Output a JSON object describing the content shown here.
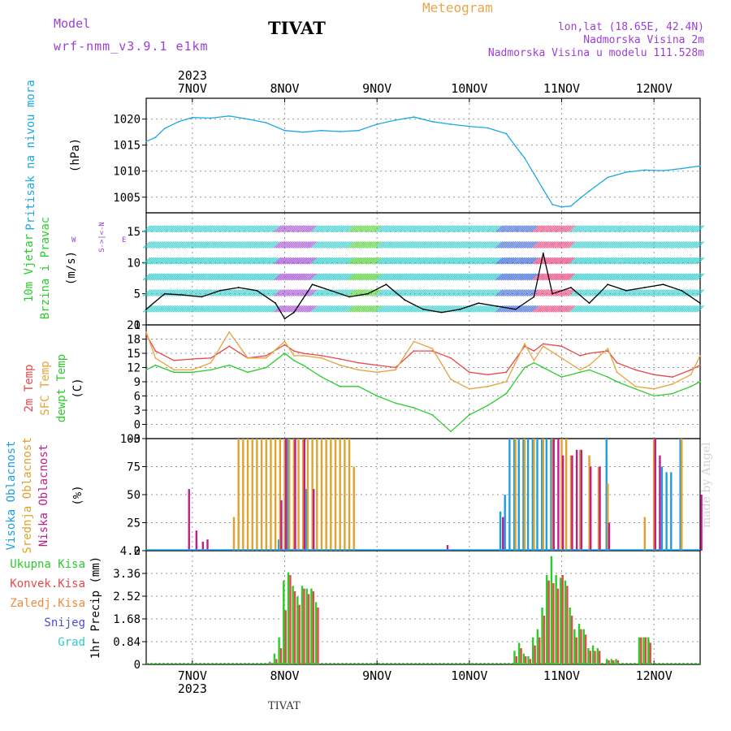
{
  "header": {
    "model_label": "Model",
    "model_name": "wrf-nmm_v3.9.1 e1km",
    "title": "TIVAT",
    "meteogram": "Meteogram",
    "lonlat": "lon,lat (18.65E, 42.4N)",
    "elevation": "Nadmorska Visina 2m",
    "model_elevation": "Nadmorska Visina u modelu 111.528m",
    "bottom_city": "TIVAT",
    "watermark": "made by Angel"
  },
  "colors": {
    "pressure": "#1ca8e4",
    "temp2m": "#e8484a",
    "sfc": "#e8a23a",
    "dewpt": "#2ccc2c",
    "high_cloud": "#1e9ee0",
    "mid_cloud": "#e0a22e",
    "low_cloud": "#c01e8c",
    "total_precip": "#2ccc2c",
    "conv_precip": "#e8484a",
    "frz_precip": "#f08a3a",
    "snow": "#4a4ae0",
    "hail": "#2ccccc",
    "purple": "#9b3fd6"
  },
  "chart_data": [
    {
      "panel": "pressure",
      "type": "line",
      "ylabel_lines": [
        "Pritisak na nivou mora",
        "(hPa)"
      ],
      "ylim": [
        1002,
        1024
      ],
      "yticks": [
        1005,
        1010,
        1015,
        1020
      ],
      "x_days": [
        6.5,
        6.6,
        6.7,
        6.85,
        7.0,
        7.2,
        7.4,
        7.6,
        7.8,
        8.0,
        8.2,
        8.4,
        8.6,
        8.8,
        9.0,
        9.2,
        9.4,
        9.6,
        9.8,
        10.0,
        10.2,
        10.4,
        10.5,
        10.6,
        10.7,
        10.8,
        10.9,
        11.0,
        11.1,
        11.2,
        11.3,
        11.5,
        11.7,
        11.9,
        12.1,
        12.3,
        12.5
      ],
      "values": [
        1015.7,
        1016.5,
        1018.2,
        1019.5,
        1020.3,
        1020.2,
        1020.6,
        1020.0,
        1019.3,
        1017.8,
        1017.5,
        1017.8,
        1017.6,
        1017.8,
        1019.0,
        1019.8,
        1020.4,
        1019.5,
        1019.0,
        1018.6,
        1018.3,
        1017.2,
        1014.8,
        1012.5,
        1009.5,
        1006.5,
        1003.6,
        1003.1,
        1003.3,
        1004.8,
        1006.2,
        1008.8,
        1009.8,
        1010.2,
        1010.1,
        1010.5,
        1011.0
      ]
    },
    {
      "panel": "wind",
      "type": "line",
      "ylabel_lines": [
        "10m Vjetar",
        "Brzina i Pravac",
        "(m/s)"
      ],
      "compass": [
        "N",
        "<-",
        "|",
        "->",
        "S"
      ],
      "compass_w": "W",
      "compass_e": "E",
      "ylim": [
        0,
        18
      ],
      "yticks": [
        0,
        5,
        10,
        15
      ],
      "x_days": [
        6.5,
        6.7,
        6.9,
        7.1,
        7.3,
        7.5,
        7.7,
        7.9,
        8.0,
        8.1,
        8.3,
        8.5,
        8.7,
        8.9,
        9.1,
        9.3,
        9.5,
        9.7,
        9.9,
        10.1,
        10.3,
        10.5,
        10.7,
        10.8,
        10.9,
        11.1,
        11.3,
        11.5,
        11.7,
        11.9,
        12.1,
        12.3,
        12.5
      ],
      "values": [
        2.5,
        5.0,
        4.8,
        4.5,
        5.5,
        6.0,
        5.5,
        3.5,
        1.0,
        2.0,
        6.5,
        5.5,
        4.5,
        5.0,
        6.5,
        4.0,
        2.5,
        2.0,
        2.5,
        3.5,
        3.0,
        2.5,
        4.5,
        11.5,
        5.0,
        6.0,
        3.5,
        6.5,
        5.5,
        6.0,
        6.5,
        5.5,
        3.5
      ]
    },
    {
      "panel": "temperature",
      "type": "line",
      "ylabel_lines": [
        "2m Temp",
        "SFC Temp",
        "dewpt Temp",
        "(C)"
      ],
      "ylim": [
        -3,
        21
      ],
      "yticks": [
        -3,
        0,
        3,
        6,
        9,
        12,
        15,
        18,
        21
      ],
      "x_days": [
        6.5,
        6.6,
        6.8,
        7.0,
        7.2,
        7.4,
        7.6,
        7.8,
        8.0,
        8.1,
        8.2,
        8.4,
        8.6,
        8.8,
        9.0,
        9.2,
        9.4,
        9.6,
        9.8,
        10.0,
        10.2,
        10.4,
        10.6,
        10.7,
        10.8,
        11.0,
        11.2,
        11.3,
        11.5,
        11.6,
        11.8,
        12.0,
        12.2,
        12.4,
        12.5
      ],
      "series": [
        {
          "name": "2m Temp",
          "color_key": "temp2m",
          "values": [
            19.0,
            15.5,
            13.5,
            13.8,
            14.0,
            16.5,
            14.0,
            14.5,
            16.8,
            15.5,
            15.0,
            14.5,
            13.8,
            13.0,
            12.5,
            12.0,
            15.5,
            15.5,
            14.0,
            11.0,
            10.5,
            11.0,
            16.5,
            15.5,
            17.0,
            16.5,
            14.5,
            15.0,
            15.5,
            13.0,
            11.5,
            10.5,
            10.0,
            11.5,
            12.5
          ]
        },
        {
          "name": "SFC Temp",
          "color_key": "sfc",
          "values": [
            19.5,
            14.0,
            11.5,
            11.5,
            13.0,
            19.5,
            14.0,
            14.0,
            17.5,
            14.5,
            14.5,
            14.0,
            12.5,
            11.5,
            11.0,
            11.5,
            17.5,
            16.0,
            9.5,
            7.5,
            8.0,
            9.0,
            17.0,
            13.5,
            16.5,
            14.0,
            11.5,
            12.5,
            16.0,
            11.0,
            8.0,
            7.5,
            8.5,
            10.5,
            14.5
          ]
        },
        {
          "name": "dewpt Temp",
          "color_key": "dewpt",
          "values": [
            11.5,
            12.5,
            11.0,
            11.0,
            11.5,
            12.5,
            11.0,
            12.0,
            15.0,
            13.5,
            12.5,
            10.0,
            8.0,
            8.0,
            6.0,
            4.5,
            3.5,
            2.0,
            -1.5,
            2.0,
            4.0,
            6.5,
            12.0,
            13.0,
            12.0,
            10.0,
            11.0,
            11.5,
            10.0,
            9.0,
            7.5,
            6.0,
            6.5,
            8.0,
            9.0
          ]
        }
      ]
    },
    {
      "panel": "clouds",
      "type": "bar",
      "ylabel_lines": [
        "Visoka Oblacnost",
        "Srednja Oblacnost",
        "Niska Oblacnost",
        "(%)"
      ],
      "ylim": [
        0,
        100
      ],
      "yticks": [
        0,
        25,
        50,
        75,
        100
      ],
      "series": [
        {
          "name": "Visoka Oblacnost",
          "color_key": "high_cloud",
          "x_days": [
            7.95,
            8.05,
            8.25,
            10.35,
            10.4,
            10.45,
            10.5,
            10.55,
            10.6,
            10.65,
            10.7,
            10.75,
            10.8,
            10.85,
            10.9,
            11.5,
            12.1,
            12.15,
            12.2,
            12.3
          ],
          "values": [
            10,
            100,
            55,
            35,
            50,
            100,
            100,
            100,
            100,
            100,
            100,
            100,
            100,
            100,
            100,
            100,
            75,
            70,
            70,
            100
          ]
        },
        {
          "name": "Srednja Oblacnost",
          "color_key": "mid_cloud",
          "x_days": [
            7.45,
            7.5,
            7.55,
            7.6,
            7.65,
            7.7,
            7.75,
            7.8,
            7.85,
            7.9,
            7.95,
            8.0,
            8.05,
            8.1,
            8.15,
            8.2,
            8.25,
            8.3,
            8.35,
            8.4,
            8.45,
            8.5,
            8.55,
            8.6,
            8.65,
            8.7,
            8.75,
            10.5,
            10.6,
            10.7,
            10.8,
            10.9,
            11.0,
            11.05,
            11.1,
            11.2,
            11.3,
            11.4,
            11.5,
            11.9,
            12.0,
            12.3
          ],
          "values": [
            30,
            100,
            100,
            100,
            100,
            100,
            100,
            100,
            100,
            100,
            100,
            100,
            100,
            100,
            100,
            100,
            100,
            100,
            100,
            100,
            100,
            100,
            100,
            100,
            100,
            100,
            75,
            100,
            100,
            100,
            100,
            100,
            100,
            100,
            85,
            90,
            85,
            75,
            60,
            30,
            100,
            100
          ]
        },
        {
          "name": "Niska Oblacnost",
          "color_key": "low_cloud",
          "x_days": [
            6.95,
            7.03,
            7.1,
            7.15,
            7.95,
            8.0,
            8.1,
            8.2,
            8.3,
            9.75,
            10.35,
            10.9,
            10.95,
            11.0,
            11.1,
            11.15,
            11.2,
            11.3,
            11.4,
            11.5,
            12.0,
            12.05,
            12.5
          ],
          "values": [
            55,
            18,
            8,
            10,
            45,
            100,
            100,
            100,
            55,
            5,
            30,
            100,
            100,
            85,
            85,
            90,
            90,
            75,
            75,
            25,
            100,
            85,
            50
          ]
        }
      ]
    },
    {
      "panel": "precipitation",
      "type": "bar",
      "ylabel_lines": [
        "1hr Precip (mm)"
      ],
      "legend": [
        "Ukupna Kisa",
        "Konvek.Kisa",
        "Zaledj.Kisa",
        "Snijeg",
        "Grad"
      ],
      "ylim": [
        0,
        4.2
      ],
      "yticks": [
        "0",
        "0.84",
        "1.68",
        "2.52",
        "3.36",
        "4.2"
      ],
      "x_days": [
        7.85,
        7.9,
        7.95,
        8.0,
        8.05,
        8.1,
        8.15,
        8.2,
        8.25,
        8.3,
        8.35,
        10.5,
        10.55,
        10.6,
        10.65,
        10.7,
        10.75,
        10.8,
        10.85,
        10.9,
        10.95,
        11.0,
        11.05,
        11.1,
        11.15,
        11.2,
        11.25,
        11.3,
        11.35,
        11.4,
        11.5,
        11.55,
        11.6,
        11.85,
        11.9,
        11.95
      ],
      "total": [
        0.1,
        0.4,
        1.0,
        3.1,
        3.4,
        2.9,
        2.5,
        2.9,
        2.8,
        2.8,
        2.3,
        0.5,
        0.8,
        0.4,
        0.3,
        1.0,
        1.3,
        2.1,
        3.3,
        4.0,
        3.3,
        3.2,
        3.1,
        2.1,
        1.3,
        1.5,
        1.3,
        0.6,
        0.7,
        0.6,
        0.2,
        0.2,
        0.2,
        1.0,
        1.0,
        1.0
      ],
      "convective": [
        0.05,
        0.2,
        0.6,
        2.0,
        3.3,
        2.7,
        2.2,
        2.8,
        2.6,
        2.7,
        2.1,
        0.3,
        0.6,
        0.3,
        0.2,
        0.7,
        1.0,
        1.8,
        3.1,
        3.0,
        2.8,
        3.3,
        2.9,
        1.8,
        1.0,
        1.3,
        1.1,
        0.5,
        0.5,
        0.5,
        0.15,
        0.15,
        0.15,
        1.0,
        1.0,
        0.8
      ]
    }
  ],
  "x_axis": {
    "ticks": [
      {
        "day": 7,
        "label": "7NOV"
      },
      {
        "day": 8,
        "label": "8NOV"
      },
      {
        "day": 9,
        "label": "9NOV"
      },
      {
        "day": 10,
        "label": "10NOV"
      },
      {
        "day": 11,
        "label": "11NOV"
      },
      {
        "day": 12,
        "label": "12NOV"
      }
    ],
    "year": "2023",
    "range": [
      6.5,
      12.5
    ]
  }
}
